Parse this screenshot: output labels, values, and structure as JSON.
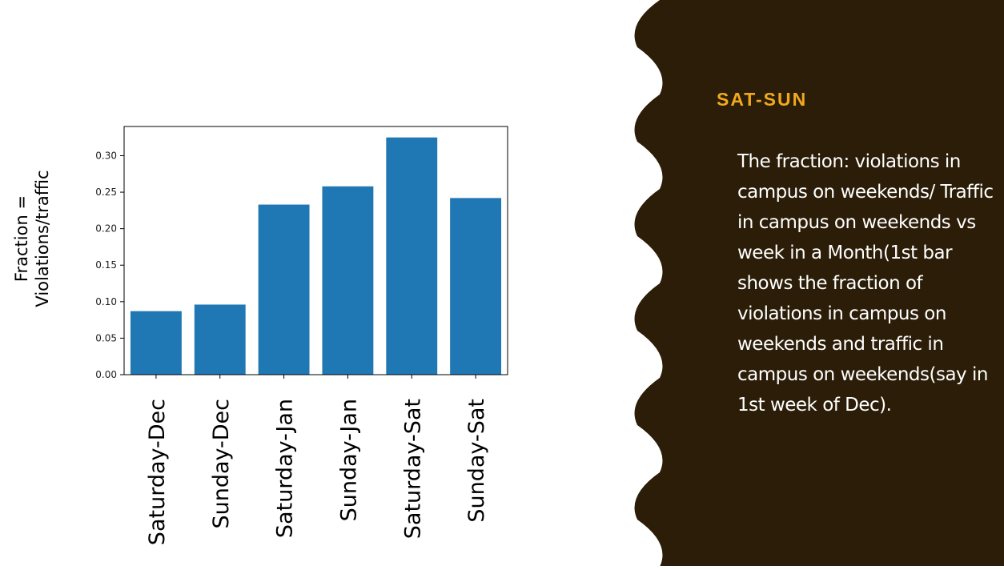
{
  "chart_data": {
    "type": "bar",
    "categories": [
      "Saturday-Dec",
      "Sunday-Dec",
      "Saturday-Jan",
      "Sunday-Jan",
      "Saturday-Sat",
      "Sunday-Sat"
    ],
    "values": [
      0.087,
      0.096,
      0.233,
      0.258,
      0.325,
      0.242
    ],
    "ylabel_lines": [
      "Fraction =",
      "Violations/traffic"
    ],
    "yticks": [
      "0.00",
      "0.05",
      "0.10",
      "0.15",
      "0.20",
      "0.25",
      "0.30"
    ],
    "ylim": [
      0,
      0.34
    ],
    "grid": false,
    "bar_color": "#1f77b4"
  },
  "sidebar": {
    "title": "SAT-SUN",
    "body": "The fraction: violations in campus on weekends/ Traffic in campus on weekends vs week in a Month(1st bar shows the fraction of violations in campus on weekends and traffic in campus on weekends(say in 1st week of Dec).",
    "bg_color": "#2b1d07",
    "accent_color": "#f2a91d"
  }
}
